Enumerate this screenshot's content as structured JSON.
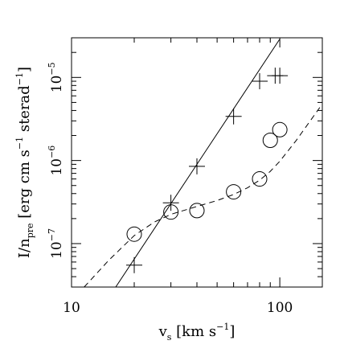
{
  "chart_data": {
    "type": "scatter",
    "x_scale": "log",
    "y_scale": "log",
    "xlim": [
      10,
      160
    ],
    "ylim": [
      3e-08,
      3e-05
    ],
    "x_ticks": [
      {
        "value": 10,
        "label": "10"
      },
      {
        "value": 100,
        "label": "100"
      }
    ],
    "y_ticks": [
      {
        "value": 1e-07,
        "base": "10",
        "exp": "−7"
      },
      {
        "value": 1e-06,
        "base": "10",
        "exp": "−6"
      },
      {
        "value": 1e-05,
        "base": "10",
        "exp": "−5"
      }
    ],
    "xlabel": {
      "main": "v",
      "sub": "s",
      "rest": " [km s",
      "exp": "−1",
      "end": "]"
    },
    "ylabel": {
      "main": "I/n",
      "sub": "pre",
      "rest1": " [erg cm s",
      "exp1": "−1",
      "rest2": " sterad",
      "exp2": "−1",
      "end": "]"
    },
    "series": [
      {
        "marker": "plus",
        "x": [
          20,
          30,
          40,
          60,
          80,
          95,
          100
        ],
        "y": [
          5.5e-08,
          3.1e-07,
          8.5e-07,
          3.4e-06,
          9e-06,
          1.05e-05,
          1.05e-05
        ]
      },
      {
        "marker": "circle",
        "x": [
          20,
          30,
          40,
          60,
          80,
          90,
          100
        ],
        "y": [
          1.3e-07,
          2.4e-07,
          2.5e-07,
          4.2e-07,
          6e-07,
          1.75e-06,
          2.35e-06
        ]
      },
      {
        "line": "solid",
        "x": [
          16.3,
          100
        ],
        "y": [
          3e-08,
          2.9e-05
        ]
      },
      {
        "line": "dashed",
        "x": [
          11.5,
          15,
          20,
          25,
          30,
          40,
          50,
          60,
          70,
          80,
          90,
          100,
          120,
          140,
          160
        ],
        "y": [
          3e-08,
          6.2e-08,
          1.25e-07,
          1.82e-07,
          2.25e-07,
          2.8e-07,
          3.3e-07,
          3.9e-07,
          4.7e-07,
          5.8e-07,
          7.4e-07,
          9.8e-07,
          1.75e-06,
          3e-06,
          4.8e-06
        ]
      }
    ]
  }
}
